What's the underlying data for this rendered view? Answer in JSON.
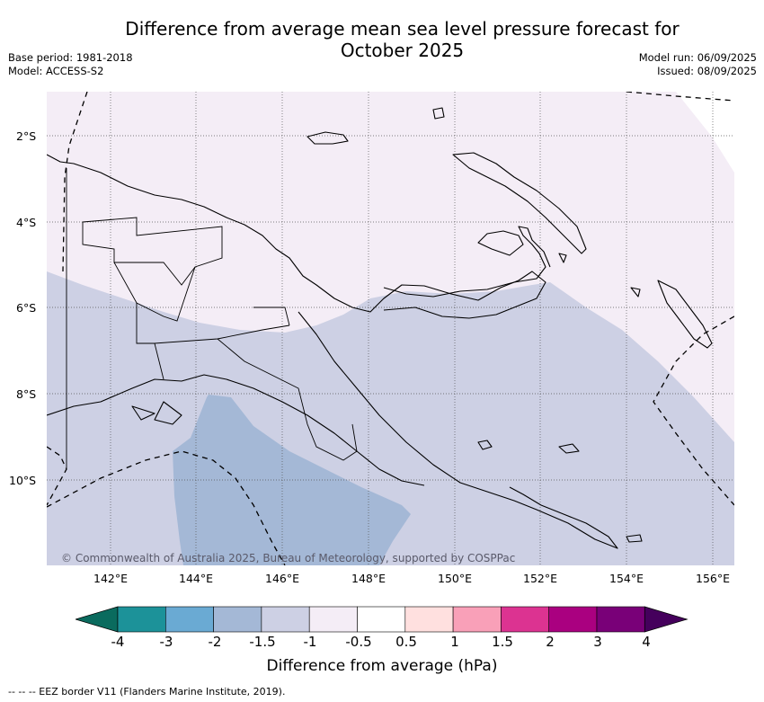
{
  "title_line1": "Difference from average mean sea level pressure forecast for",
  "title_line2": "October 2025",
  "base_period": "Base period: 1981-2018",
  "model": "Model: ACCESS-S2",
  "model_run": "Model run: 06/09/2025",
  "issued": "Issued: 08/09/2025",
  "lat_ticks": [
    "2°S",
    "4°S",
    "6°S",
    "8°S",
    "10°S"
  ],
  "lon_ticks": [
    "142°E",
    "144°E",
    "146°E",
    "148°E",
    "150°E",
    "152°E",
    "154°E",
    "156°E"
  ],
  "copyright": "© Commonwealth of Australia 2025, Bureau of Meteorology, supported by COSPPac",
  "colorbar": {
    "labels": [
      "-4",
      "-3",
      "-2",
      "-1.5",
      "-1",
      "-0.5",
      "0.5",
      "1",
      "1.5",
      "2",
      "3",
      "4"
    ],
    "colors": [
      "#0a6b5e",
      "#1c9299",
      "#6aaad3",
      "#a4b8d6",
      "#cdd0e4",
      "#f4edf6",
      "#ffffff",
      "#ffe0df",
      "#f9a0b8",
      "#dc3391",
      "#aa0080",
      "#790078",
      "#45005c"
    ],
    "title": "Difference from average (hPa)"
  },
  "legend_eez": "-- -- -- EEZ border V11 (Flanders Marine Institute, 2019).",
  "map_colors": {
    "band_minus05_0": "#f4edf6",
    "band_minus1_minus05": "#cdd0e4",
    "band_minus15_minus1": "#a4b8d6"
  }
}
